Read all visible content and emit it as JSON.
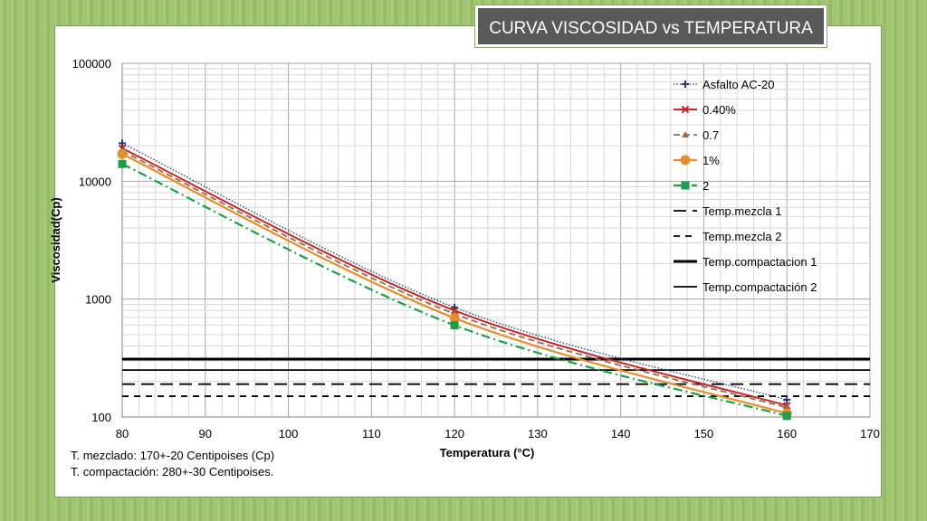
{
  "slide": {
    "title": "CURVA VISCOSIDAD vs TEMPERATURA",
    "notes": [
      "T. mezclado: 170+-20 Centipoises (Cp)",
      "T. compactación: 280+-30 Centipoises."
    ]
  },
  "chart_data": {
    "type": "line",
    "xlabel": "Temperatura (°C)",
    "ylabel": "Viscosidad(Cp)",
    "xlim": [
      80,
      170
    ],
    "ylim": [
      100,
      100000
    ],
    "y_scale": "log",
    "x_ticks": [
      "80",
      "90",
      "100",
      "110",
      "120",
      "130",
      "140",
      "150",
      "160",
      "170"
    ],
    "y_ticks": [
      "100",
      "1000",
      "10000",
      "100000"
    ],
    "grid": true,
    "legend_position": "right-inside",
    "series": [
      {
        "name": "Asfalto AC-20",
        "color": "#1f3a7a",
        "dash": "dotted",
        "marker": "plus",
        "width": 1.3,
        "x": [
          80,
          120,
          160
        ],
        "y": [
          21000,
          850,
          140
        ]
      },
      {
        "name": "0.40%",
        "color": "#c0282d",
        "dash": "solid",
        "marker": "x",
        "width": 2,
        "x": [
          80,
          120,
          160
        ],
        "y": [
          19000,
          800,
          125
        ]
      },
      {
        "name": "0.7",
        "color": "#9c6b45",
        "dash": "dashed",
        "marker": "triangle",
        "width": 1.8,
        "x": [
          80,
          120,
          160
        ],
        "y": [
          18000,
          750,
          120
        ]
      },
      {
        "name": "1%",
        "color": "#e0912f",
        "dash": "solid",
        "marker": "circle",
        "width": 2.2,
        "x": [
          80,
          120,
          160
        ],
        "y": [
          17000,
          690,
          107
        ]
      },
      {
        "name": "2",
        "color": "#1e9e4a",
        "dash": "dashdot",
        "marker": "square",
        "width": 2.2,
        "x": [
          80,
          120,
          160
        ],
        "y": [
          14000,
          600,
          102
        ]
      }
    ],
    "reference_lines": [
      {
        "name": "Temp.mezcla 1",
        "y": 190,
        "color": "#000000",
        "dash": "longdash",
        "width": 1.8
      },
      {
        "name": "Temp.mezcla 2",
        "y": 150,
        "color": "#000000",
        "dash": "shortdash",
        "width": 1.8
      },
      {
        "name": "Temp.compactacion 1",
        "y": 310,
        "color": "#000000",
        "dash": "solid",
        "width": 3
      },
      {
        "name": "Temp.compactación 2",
        "y": 250,
        "color": "#000000",
        "dash": "solid",
        "width": 1.8
      }
    ]
  }
}
